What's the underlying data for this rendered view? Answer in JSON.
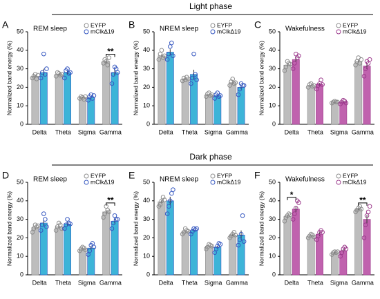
{
  "sections": [
    "Light phase",
    "Dark phase"
  ],
  "chart_data": [
    {
      "type": "bar",
      "panel": "A",
      "title": "REM sleep",
      "ylabel": "Normalized band energy (%)",
      "categories": [
        "Delta",
        "Theta",
        "Sigma",
        "Gamma"
      ],
      "ylim": [
        0,
        50
      ],
      "yticks": [
        0,
        10,
        20,
        30,
        40,
        50
      ],
      "series": [
        {
          "name": "EYFP",
          "color": "#bdbdbd",
          "point_color": "#8c8c8c",
          "values": [
            26,
            27,
            14.5,
            34
          ],
          "errors": [
            0.6,
            0.5,
            0.4,
            0.8
          ],
          "points": [
            [
              25,
              26,
              27,
              24.5,
              26.5
            ],
            [
              26,
              28,
              27.5,
              26.5,
              27
            ],
            [
              14,
              15,
              14.5,
              13.5,
              15
            ],
            [
              33,
              35,
              34,
              32,
              36
            ]
          ]
        },
        {
          "name": "mClkΔ19",
          "color": "#3db4d8",
          "point_color": "#3557c0",
          "values": [
            28,
            28,
            14.5,
            28
          ],
          "errors": [
            2,
            1,
            0.6,
            1.7
          ],
          "points": [
            [
              25,
              28,
              38,
              27,
              30
            ],
            [
              25,
              29,
              30,
              27.5,
              28
            ],
            [
              13,
              15,
              16,
              14,
              15.5
            ],
            [
              22,
              27,
              31,
              30,
              28
            ]
          ]
        }
      ],
      "annotations": [
        {
          "text": "**",
          "x": "Gamma"
        }
      ]
    },
    {
      "type": "bar",
      "panel": "B",
      "title": "NREM sleep",
      "ylabel": "Normalized band energy (%)",
      "categories": [
        "Delta",
        "Theta",
        "Sigma",
        "Gamma"
      ],
      "ylim": [
        0,
        50
      ],
      "yticks": [
        0,
        10,
        20,
        30,
        40,
        50
      ],
      "series": [
        {
          "name": "EYFP",
          "color": "#bdbdbd",
          "point_color": "#8c8c8c",
          "values": [
            37,
            24.5,
            16,
            22.5
          ],
          "errors": [
            0.8,
            0.4,
            0.4,
            0.6
          ],
          "points": [
            [
              35,
              38,
              40,
              36,
              37
            ],
            [
              23.5,
              25,
              24,
              25.5,
              24.5
            ],
            [
              15,
              16.5,
              17,
              15.5,
              16
            ],
            [
              21,
              23,
              24.5,
              22,
              22.5
            ]
          ]
        },
        {
          "name": "mClkΔ19",
          "color": "#3db4d8",
          "point_color": "#3557c0",
          "values": [
            39,
            27,
            15.5,
            20
          ],
          "errors": [
            1.6,
            2.5,
            0.5,
            1.1
          ],
          "points": [
            [
              35,
              38,
              42,
              44,
              37
            ],
            [
              22,
              25,
              38,
              27,
              24
            ],
            [
              14,
              16,
              17,
              15,
              15.5
            ],
            [
              16,
              19,
              22,
              21,
              21
            ]
          ]
        }
      ]
    },
    {
      "type": "bar",
      "panel": "C",
      "title": "Wakefulness",
      "ylabel": "Normalized band energy (%)",
      "categories": [
        "Delta",
        "Theta",
        "Sigma",
        "Gamma"
      ],
      "ylim": [
        0,
        50
      ],
      "yticks": [
        0,
        10,
        20,
        30,
        40,
        50
      ],
      "series": [
        {
          "name": "EYFP",
          "color": "#bdbdbd",
          "point_color": "#8c8c8c",
          "values": [
            32,
            21,
            12,
            34
          ],
          "errors": [
            0.8,
            0.4,
            0.2,
            0.7
          ],
          "points": [
            [
              29,
              31,
              34,
              33,
              32.5
            ],
            [
              20,
              21.5,
              22,
              20.5,
              21
            ],
            [
              11.5,
              12,
              12.5,
              12,
              12
            ],
            [
              32,
              34,
              36,
              33,
              35
            ]
          ]
        },
        {
          "name": "mClkΔ19",
          "color": "#c062ae",
          "point_color": "#9c3a8c",
          "values": [
            35,
            21.5,
            12,
            31.5
          ],
          "errors": [
            1.4,
            0.8,
            0.4,
            1.6
          ],
          "points": [
            [
              30,
              33,
              38,
              36,
              37
            ],
            [
              19,
              21,
              22,
              24,
              21.5
            ],
            [
              11,
              12,
              13,
              12.5,
              11.5
            ],
            [
              26,
              30,
              34,
              33,
              35
            ]
          ]
        }
      ]
    },
    {
      "type": "bar",
      "panel": "D",
      "title": "REM sleep",
      "ylabel": "Normalized band energy (%)",
      "categories": [
        "Delta",
        "Theta",
        "Sigma",
        "Gamma"
      ],
      "ylim": [
        0,
        50
      ],
      "yticks": [
        0,
        10,
        20,
        30,
        40,
        50
      ],
      "series": [
        {
          "name": "EYFP",
          "color": "#bdbdbd",
          "point_color": "#8c8c8c",
          "values": [
            25.5,
            26,
            14,
            34
          ],
          "errors": [
            0.7,
            0.7,
            0.4,
            1
          ],
          "points": [
            [
              23,
              25,
              27,
              26,
              26.5
            ],
            [
              24,
              26,
              28,
              27,
              25
            ],
            [
              13,
              14,
              15,
              14.5,
              13.5
            ],
            [
              31,
              33,
              37,
              35,
              34
            ]
          ]
        },
        {
          "name": "mClkΔ19",
          "color": "#3db4d8",
          "point_color": "#3557c0",
          "values": [
            28,
            27.5,
            14.5,
            29
          ],
          "errors": [
            1.5,
            0.9,
            1.1,
            1.2
          ],
          "points": [
            [
              24,
              27,
              33,
              30,
              26
            ],
            [
              25,
              27,
              30,
              28,
              27.5
            ],
            [
              11,
              13,
              16,
              17,
              15
            ],
            [
              25,
              28,
              32,
              30,
              30
            ]
          ]
        }
      ],
      "annotations": [
        {
          "text": "**",
          "x": "Gamma"
        }
      ]
    },
    {
      "type": "bar",
      "panel": "E",
      "title": "NREM sleep",
      "ylabel": "Normalized band energy (%)",
      "categories": [
        "Delta",
        "Theta",
        "Sigma",
        "Gamma"
      ],
      "ylim": [
        0,
        50
      ],
      "yticks": [
        0,
        10,
        20,
        30,
        40,
        50
      ],
      "series": [
        {
          "name": "EYFP",
          "color": "#bdbdbd",
          "point_color": "#8c8c8c",
          "values": [
            39.5,
            23.5,
            15.5,
            21.5
          ],
          "errors": [
            1,
            0.5,
            0.4,
            0.5
          ],
          "points": [
            [
              37,
              38,
              40,
              42,
              40.5
            ],
            [
              22,
              23,
              25,
              24,
              23.5
            ],
            [
              14,
              15,
              16.5,
              16,
              15.5
            ],
            [
              20,
              21,
              22,
              23,
              21.5
            ]
          ]
        },
        {
          "name": "mClkΔ19",
          "color": "#3db4d8",
          "point_color": "#3557c0",
          "values": [
            40,
            24,
            15,
            21.5
          ],
          "errors": [
            2.2,
            0.6,
            0.8,
            2.5
          ],
          "points": [
            [
              33,
              37,
              40,
              44,
              46
            ],
            [
              22,
              23.5,
              25,
              24.5,
              25
            ],
            [
              12,
              14,
              15.5,
              17,
              16.5
            ],
            [
              16,
              19,
              22,
              32,
              18
            ]
          ]
        }
      ]
    },
    {
      "type": "bar",
      "panel": "F",
      "title": "Wakefulness",
      "ylabel": "Normalized band energy (%)",
      "categories": [
        "Delta",
        "Theta",
        "Sigma",
        "Gamma"
      ],
      "ylim": [
        0,
        50
      ],
      "yticks": [
        0,
        10,
        20,
        30,
        40,
        50
      ],
      "series": [
        {
          "name": "EYFP",
          "color": "#bdbdbd",
          "point_color": "#8c8c8c",
          "values": [
            31.5,
            21,
            12,
            35.5
          ],
          "errors": [
            0.7,
            0.4,
            0.3,
            0.6
          ],
          "points": [
            [
              29,
              31,
              32,
              33,
              32.5
            ],
            [
              20,
              21,
              22,
              21.5,
              20.5
            ],
            [
              11,
              12,
              12.5,
              12,
              12.5
            ],
            [
              34,
              35,
              36,
              37,
              35.5
            ]
          ]
        },
        {
          "name": "mClkΔ19",
          "color": "#c062ae",
          "point_color": "#9c3a8c",
          "values": [
            35.5,
            22,
            13,
            30
          ],
          "errors": [
            1.6,
            1,
            0.8,
            2.4
          ],
          "points": [
            [
              30,
              33,
              36,
              40,
              39
            ],
            [
              19,
              21,
              23,
              24,
              23
            ],
            [
              10,
              12,
              14,
              15,
              14
            ],
            [
              20,
              27,
              32,
              34,
              37
            ]
          ]
        }
      ],
      "annotations": [
        {
          "text": "*",
          "x": "Delta"
        },
        {
          "text": "**",
          "x": "Gamma"
        }
      ]
    }
  ]
}
